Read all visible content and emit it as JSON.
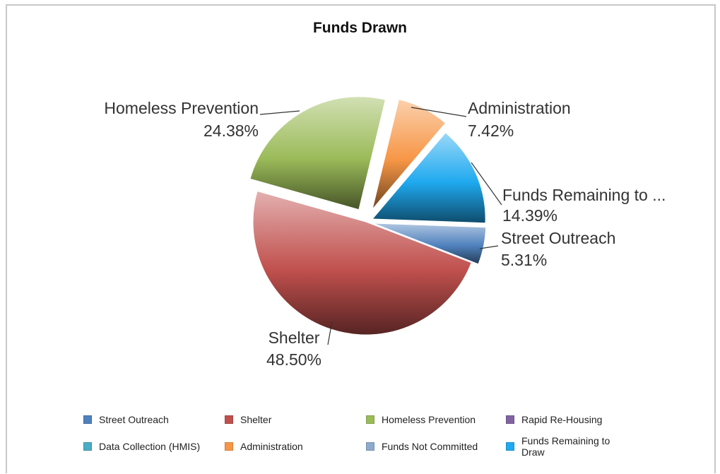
{
  "chart_data": {
    "type": "pie",
    "title": "Funds Drawn",
    "slices": [
      {
        "name": "Street Outreach",
        "value": 5.31,
        "label": "5.31%",
        "callout": "Street Outreach",
        "color": "#4f81bd"
      },
      {
        "name": "Shelter",
        "value": 48.5,
        "label": "48.50%",
        "callout": "Shelter",
        "color": "#c0504d"
      },
      {
        "name": "Homeless Prevention",
        "value": 24.38,
        "label": "24.38%",
        "callout": "Homeless Prevention",
        "color": "#9bbb59"
      },
      {
        "name": "Administration",
        "value": 7.42,
        "label": "7.42%",
        "callout": "Administration",
        "color": "#f79646"
      },
      {
        "name": "Funds Remaining to Draw",
        "value": 14.39,
        "label": "14.39%",
        "callout": "Funds Remaining to ...",
        "color": "#1fa9ef"
      }
    ],
    "legend": [
      {
        "label": "Street Outreach",
        "color": "#4f81bd"
      },
      {
        "label": "Shelter",
        "color": "#c0504d"
      },
      {
        "label": "Homeless Prevention",
        "color": "#9bbb59"
      },
      {
        "label": "Rapid Re-Housing",
        "color": "#8064a2"
      },
      {
        "label": "Data Collection (HMIS)",
        "color": "#4bacc6"
      },
      {
        "label": "Administration",
        "color": "#f79646"
      },
      {
        "label": "Funds Not Committed",
        "color": "#8eaacc"
      },
      {
        "label": "Funds Remaining to Draw",
        "color": "#1fa9ef"
      }
    ],
    "legend_placement": "bottom"
  }
}
